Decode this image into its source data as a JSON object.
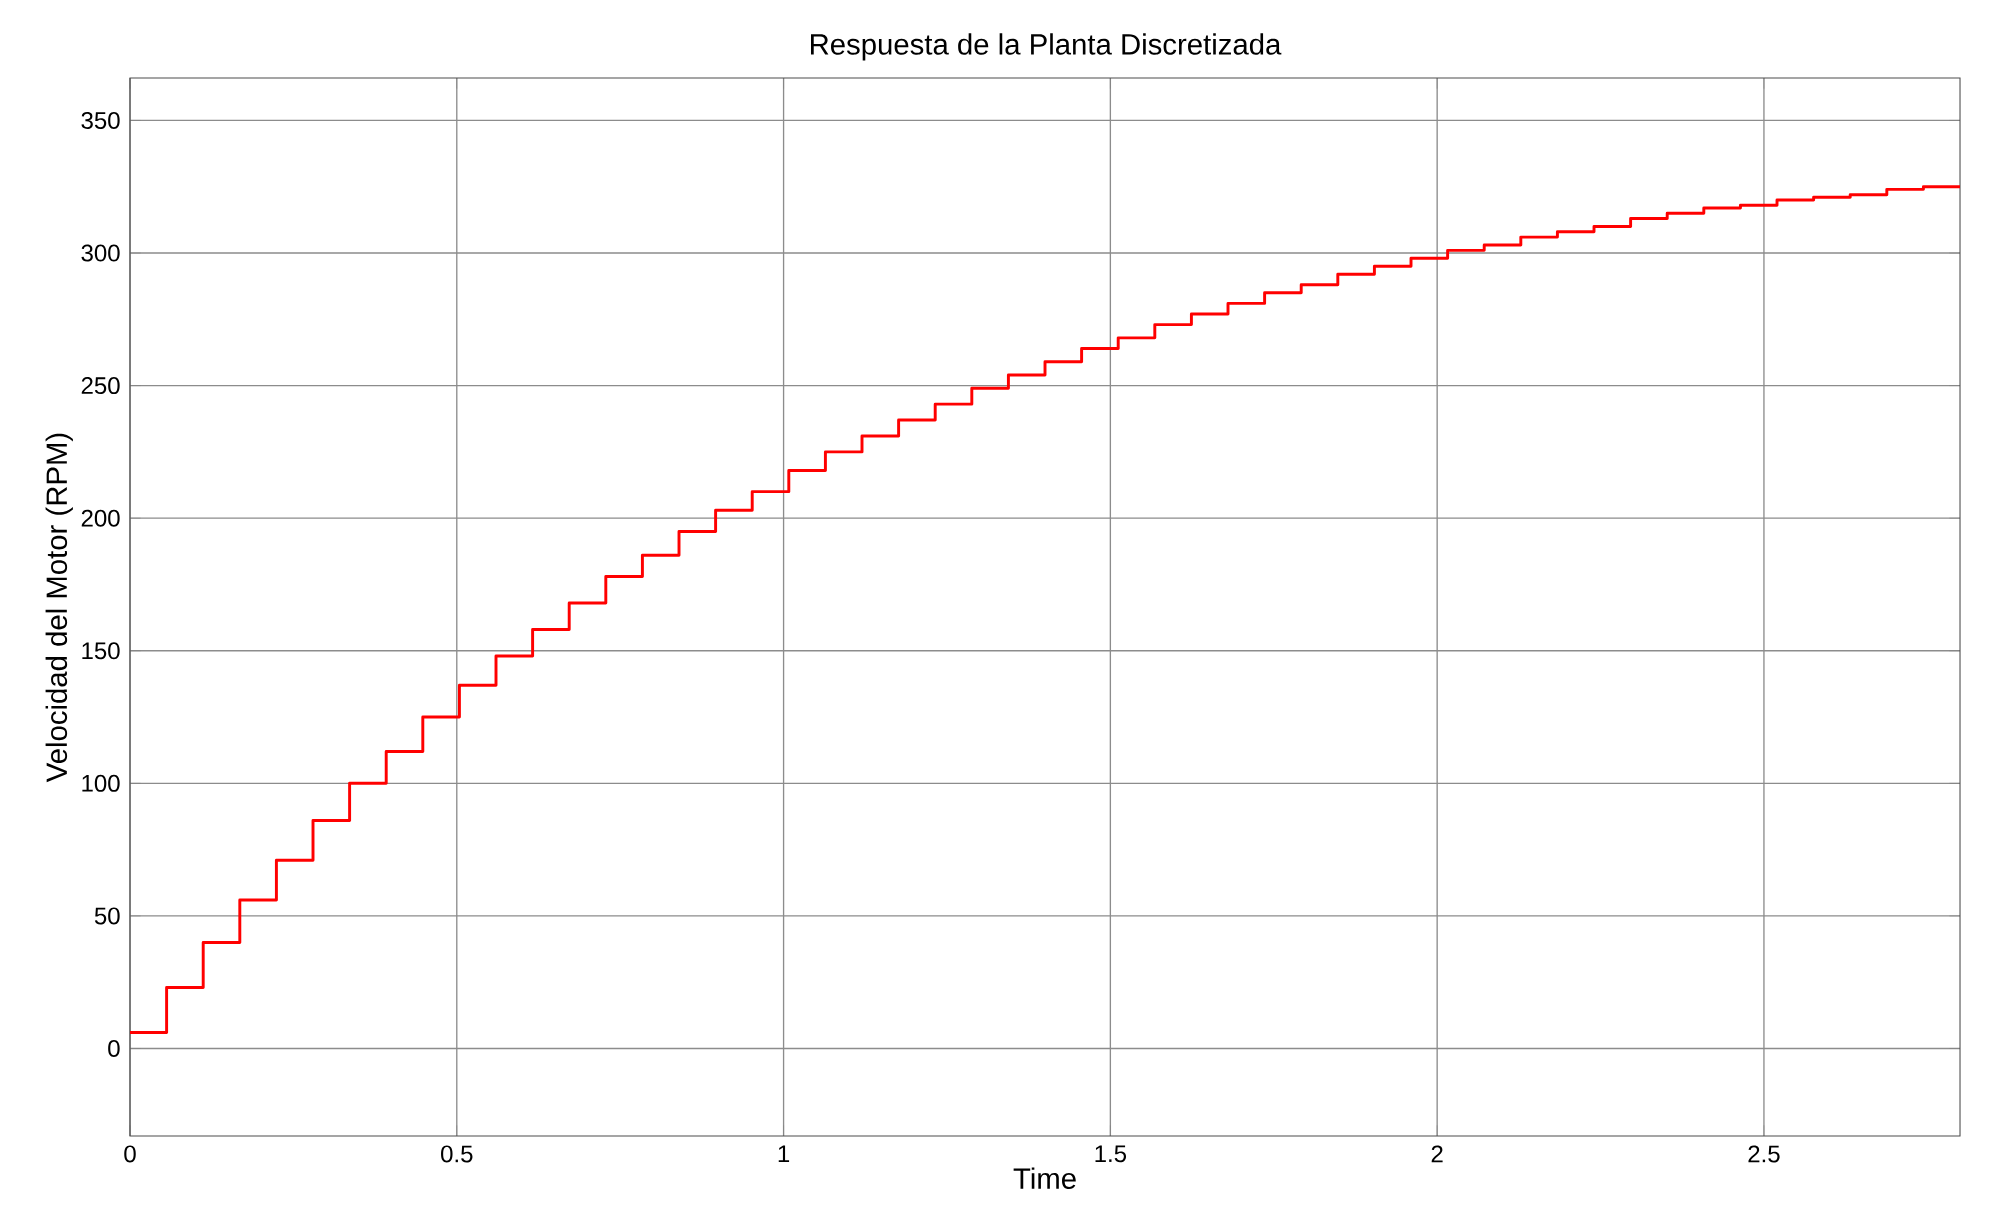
{
  "chart_data": {
    "type": "step",
    "title": "Respuesta de la Planta Discretizada",
    "xlabel": "Time",
    "ylabel": "Velocidad del Motor (RPM)",
    "x": [
      0,
      0.056,
      0.112,
      0.168,
      0.224,
      0.28,
      0.336,
      0.392,
      0.448,
      0.504,
      0.56,
      0.616,
      0.672,
      0.728,
      0.784,
      0.84,
      0.896,
      0.952,
      1.008,
      1.064,
      1.12,
      1.176,
      1.232,
      1.288,
      1.344,
      1.4,
      1.456,
      1.512,
      1.568,
      1.624,
      1.68,
      1.736,
      1.792,
      1.848,
      1.904,
      1.96,
      2.016,
      2.072,
      2.128,
      2.184,
      2.24,
      2.296,
      2.352,
      2.408,
      2.464,
      2.52,
      2.576,
      2.632,
      2.688,
      2.744,
      2.8
    ],
    "series": [
      {
        "color": "#ff0000",
        "values": [
          6,
          23,
          40,
          56,
          71,
          86,
          100,
          112,
          125,
          137,
          148,
          158,
          168,
          178,
          186,
          195,
          203,
          210,
          218,
          225,
          231,
          237,
          243,
          249,
          254,
          259,
          264,
          268,
          273,
          277,
          281,
          285,
          288,
          292,
          295,
          298,
          301,
          303,
          306,
          308,
          310,
          313,
          315,
          317,
          318,
          320,
          321,
          322,
          324,
          325,
          325
        ]
      }
    ],
    "xlim": [
      0,
      2.8
    ],
    "ylim": [
      -33,
      366
    ],
    "xticks": [
      0,
      0.5,
      1,
      1.5,
      2,
      2.5
    ],
    "yticks": [
      0,
      50,
      100,
      150,
      200,
      250,
      300,
      350
    ],
    "grid": true
  }
}
